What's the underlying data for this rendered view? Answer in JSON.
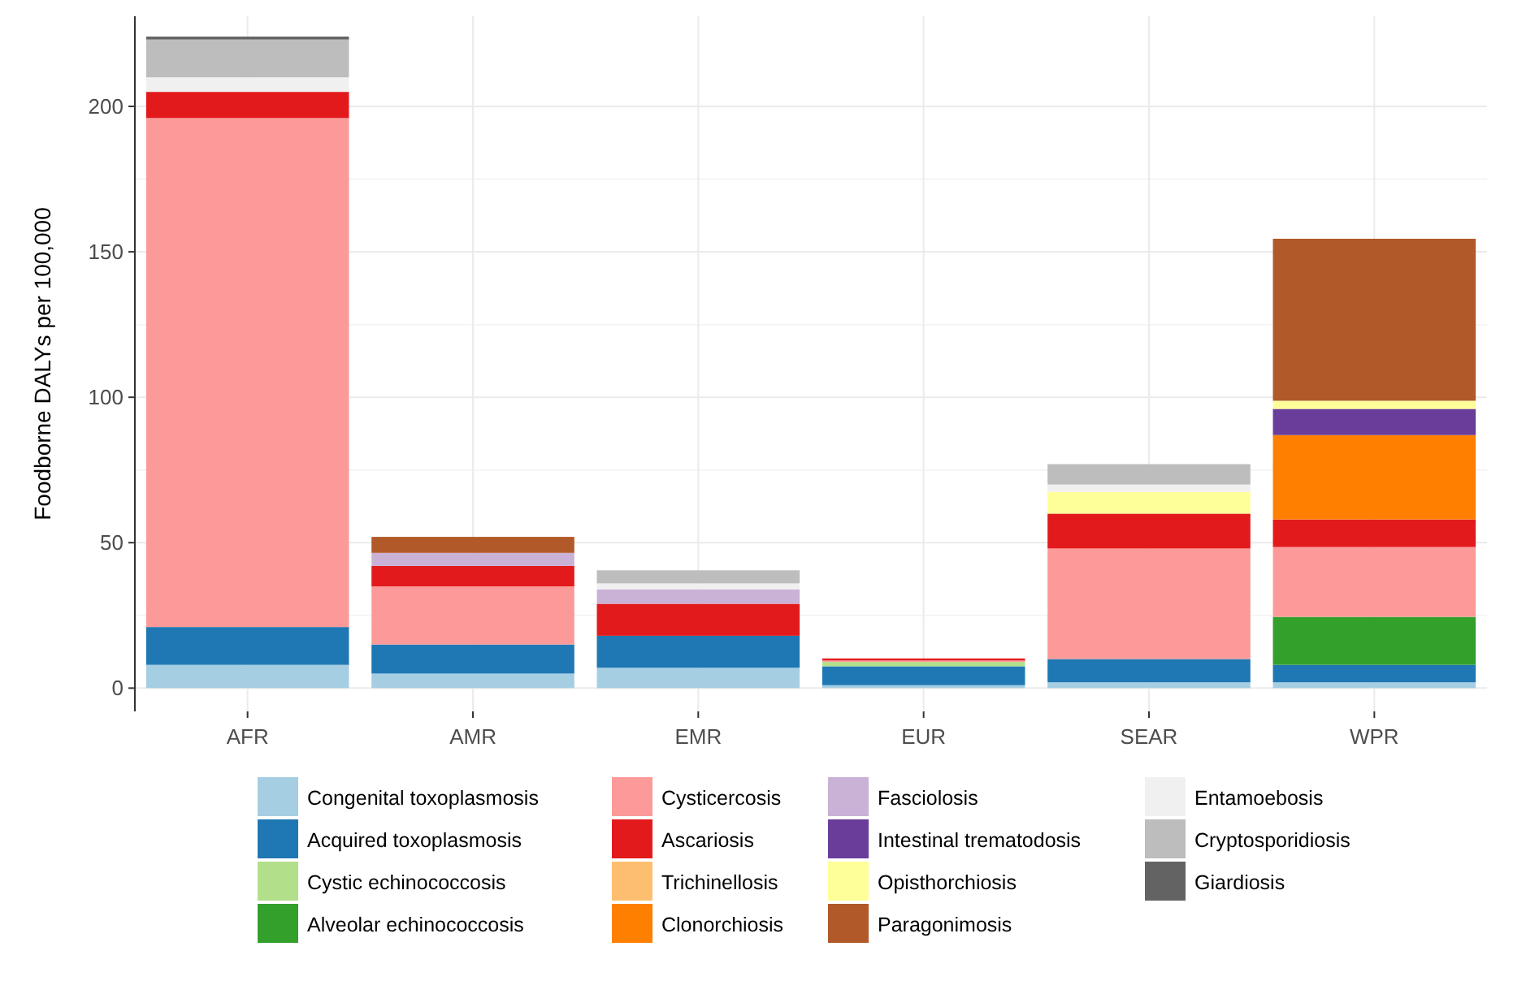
{
  "chart_data": {
    "type": "bar",
    "stacked": true,
    "ylabel": "Foodborne DALYs per 100,000",
    "categories": [
      "AFR",
      "AMR",
      "EMR",
      "EUR",
      "SEAR",
      "WPR"
    ],
    "ylim": [
      -8,
      231
    ],
    "yticks": [
      0,
      50,
      100,
      150,
      200
    ],
    "grid": true,
    "legend": "bottom",
    "series": [
      {
        "name": "Congenital toxoplasmosis",
        "color": "#a6cee3",
        "values": [
          8,
          5,
          7,
          1,
          2,
          2
        ]
      },
      {
        "name": "Acquired toxoplasmosis",
        "color": "#1f78b4",
        "values": [
          13,
          10,
          11,
          6.5,
          8,
          6
        ]
      },
      {
        "name": "Cystic echinococcosis",
        "color": "#b2df8a",
        "values": [
          0,
          0,
          0,
          1.5,
          0,
          0
        ]
      },
      {
        "name": "Alveolar echinococcosis",
        "color": "#33a02c",
        "values": [
          0,
          0,
          0,
          0,
          0,
          16.5
        ]
      },
      {
        "name": "Cysticercosis",
        "color": "#fb9a99",
        "values": [
          175,
          20,
          0,
          0.5,
          38,
          24
        ]
      },
      {
        "name": "Ascariosis",
        "color": "#e31a1c",
        "values": [
          9,
          7,
          11,
          0.7,
          12,
          9.5
        ]
      },
      {
        "name": "Trichinellosis",
        "color": "#fdbf6f",
        "values": [
          0,
          0,
          0,
          0,
          0,
          0
        ]
      },
      {
        "name": "Clonorchiosis",
        "color": "#ff7f00",
        "values": [
          0,
          0,
          0,
          0,
          0,
          29
        ]
      },
      {
        "name": "Fasciolosis",
        "color": "#cab2d6",
        "values": [
          0,
          4.5,
          5,
          0,
          0,
          0
        ]
      },
      {
        "name": "Intestinal trematodosis",
        "color": "#6a3d9a",
        "values": [
          0,
          0,
          0,
          0,
          0,
          9
        ]
      },
      {
        "name": "Opisthorchiosis",
        "color": "#ffff99",
        "values": [
          0,
          0,
          0,
          0,
          7.5,
          2.8
        ]
      },
      {
        "name": "Paragonimosis",
        "color": "#b15928",
        "values": [
          0,
          5.5,
          0,
          0,
          0,
          55.7
        ]
      },
      {
        "name": "Entamoebosis",
        "color": "#f0f0f0",
        "values": [
          5,
          0,
          2,
          0,
          2.5,
          0
        ]
      },
      {
        "name": "Cryptosporidiosis",
        "color": "#bdbdbd",
        "values": [
          13,
          0,
          4.5,
          0,
          7,
          0
        ]
      },
      {
        "name": "Giardiosis",
        "color": "#636363",
        "values": [
          1,
          0,
          0,
          0,
          0,
          0
        ]
      }
    ]
  }
}
